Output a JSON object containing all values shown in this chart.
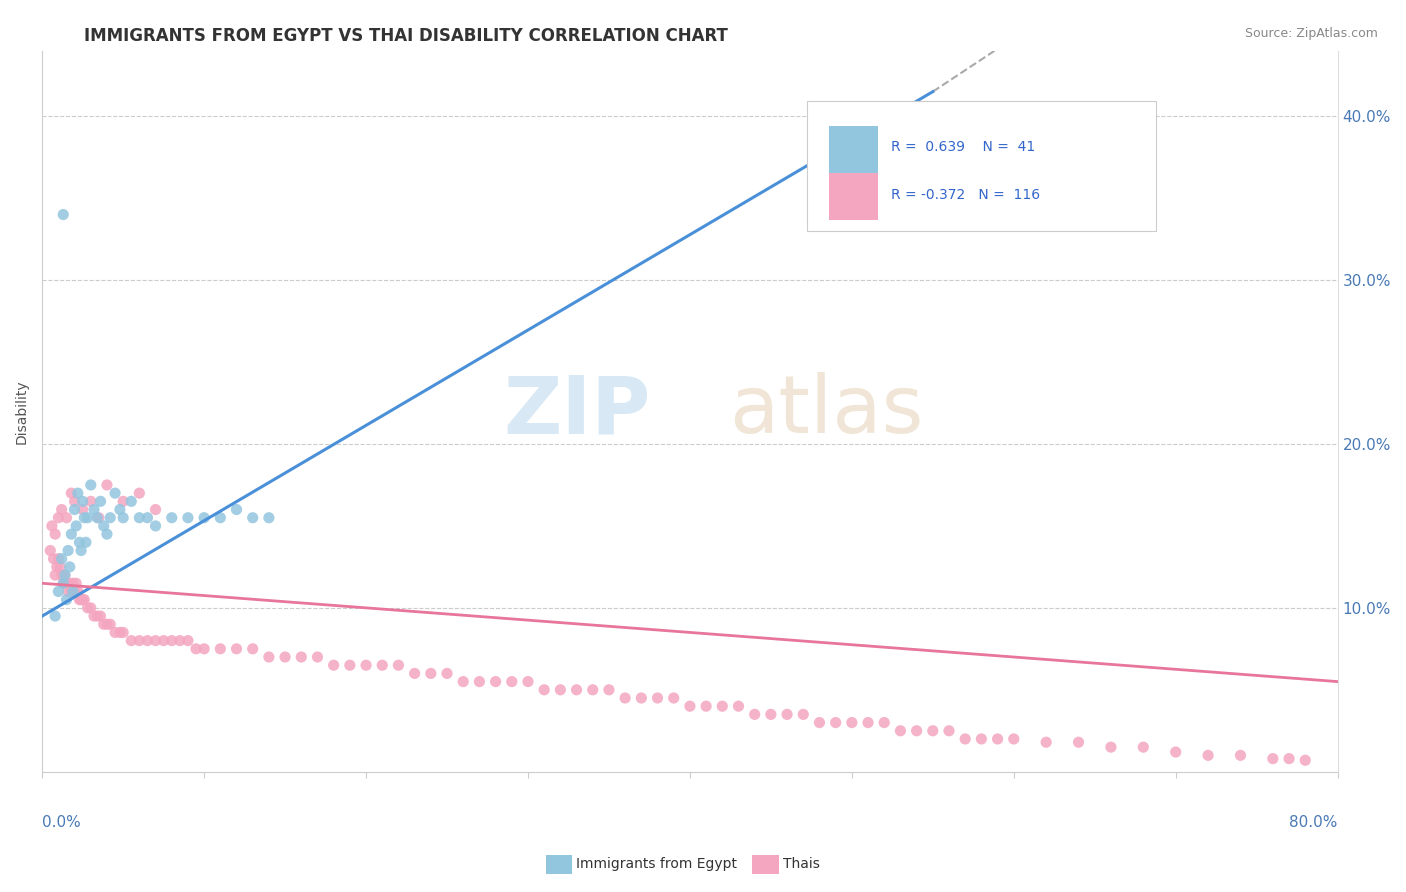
{
  "title": "IMMIGRANTS FROM EGYPT VS THAI DISABILITY CORRELATION CHART",
  "source": "Source: ZipAtlas.com",
  "ylabel": "Disability",
  "xmin": 0.0,
  "xmax": 0.8,
  "ymin": 0.0,
  "ymax": 0.44,
  "yticks": [
    0.1,
    0.2,
    0.3,
    0.4
  ],
  "ytick_labels": [
    "10.0%",
    "20.0%",
    "30.0%",
    "40.0%"
  ],
  "blue_color": "#92c5de",
  "pink_color": "#f4a6c0",
  "blue_line_color": "#4a90d9",
  "pink_line_color": "#e8759a",
  "blue_scatter_x": [
    0.008,
    0.01,
    0.012,
    0.013,
    0.014,
    0.015,
    0.016,
    0.017,
    0.018,
    0.019,
    0.02,
    0.021,
    0.022,
    0.023,
    0.024,
    0.025,
    0.026,
    0.027,
    0.028,
    0.03,
    0.032,
    0.034,
    0.036,
    0.038,
    0.04,
    0.042,
    0.045,
    0.048,
    0.05,
    0.055,
    0.06,
    0.065,
    0.07,
    0.08,
    0.09,
    0.1,
    0.11,
    0.12,
    0.13,
    0.14,
    0.013
  ],
  "blue_scatter_y": [
    0.095,
    0.11,
    0.13,
    0.115,
    0.12,
    0.105,
    0.135,
    0.125,
    0.145,
    0.11,
    0.16,
    0.15,
    0.17,
    0.14,
    0.135,
    0.165,
    0.155,
    0.14,
    0.155,
    0.175,
    0.16,
    0.155,
    0.165,
    0.15,
    0.145,
    0.155,
    0.17,
    0.16,
    0.155,
    0.165,
    0.155,
    0.155,
    0.15,
    0.155,
    0.155,
    0.155,
    0.155,
    0.16,
    0.155,
    0.155,
    0.34
  ],
  "pink_scatter_x": [
    0.005,
    0.007,
    0.008,
    0.009,
    0.01,
    0.011,
    0.012,
    0.013,
    0.014,
    0.015,
    0.016,
    0.017,
    0.018,
    0.019,
    0.02,
    0.021,
    0.022,
    0.023,
    0.024,
    0.025,
    0.026,
    0.028,
    0.03,
    0.032,
    0.034,
    0.036,
    0.038,
    0.04,
    0.042,
    0.045,
    0.048,
    0.05,
    0.055,
    0.06,
    0.065,
    0.07,
    0.075,
    0.08,
    0.085,
    0.09,
    0.095,
    0.1,
    0.11,
    0.12,
    0.13,
    0.14,
    0.15,
    0.16,
    0.17,
    0.18,
    0.19,
    0.2,
    0.21,
    0.22,
    0.23,
    0.24,
    0.25,
    0.26,
    0.27,
    0.28,
    0.29,
    0.3,
    0.31,
    0.32,
    0.33,
    0.34,
    0.35,
    0.36,
    0.37,
    0.38,
    0.39,
    0.4,
    0.41,
    0.42,
    0.43,
    0.44,
    0.45,
    0.46,
    0.47,
    0.48,
    0.49,
    0.5,
    0.51,
    0.52,
    0.53,
    0.54,
    0.55,
    0.56,
    0.57,
    0.58,
    0.59,
    0.6,
    0.62,
    0.64,
    0.66,
    0.68,
    0.7,
    0.72,
    0.74,
    0.76,
    0.77,
    0.78,
    0.006,
    0.008,
    0.01,
    0.012,
    0.015,
    0.018,
    0.02,
    0.025,
    0.03,
    0.035,
    0.04,
    0.05,
    0.06,
    0.07
  ],
  "pink_scatter_y": [
    0.135,
    0.13,
    0.12,
    0.125,
    0.13,
    0.125,
    0.12,
    0.115,
    0.12,
    0.115,
    0.11,
    0.115,
    0.11,
    0.115,
    0.11,
    0.115,
    0.11,
    0.105,
    0.105,
    0.105,
    0.105,
    0.1,
    0.1,
    0.095,
    0.095,
    0.095,
    0.09,
    0.09,
    0.09,
    0.085,
    0.085,
    0.085,
    0.08,
    0.08,
    0.08,
    0.08,
    0.08,
    0.08,
    0.08,
    0.08,
    0.075,
    0.075,
    0.075,
    0.075,
    0.075,
    0.07,
    0.07,
    0.07,
    0.07,
    0.065,
    0.065,
    0.065,
    0.065,
    0.065,
    0.06,
    0.06,
    0.06,
    0.055,
    0.055,
    0.055,
    0.055,
    0.055,
    0.05,
    0.05,
    0.05,
    0.05,
    0.05,
    0.045,
    0.045,
    0.045,
    0.045,
    0.04,
    0.04,
    0.04,
    0.04,
    0.035,
    0.035,
    0.035,
    0.035,
    0.03,
    0.03,
    0.03,
    0.03,
    0.03,
    0.025,
    0.025,
    0.025,
    0.025,
    0.02,
    0.02,
    0.02,
    0.02,
    0.018,
    0.018,
    0.015,
    0.015,
    0.012,
    0.01,
    0.01,
    0.008,
    0.008,
    0.007,
    0.15,
    0.145,
    0.155,
    0.16,
    0.155,
    0.17,
    0.165,
    0.16,
    0.165,
    0.155,
    0.175,
    0.165,
    0.17,
    0.16
  ],
  "blue_line_x_start": 0.0,
  "blue_line_x_solid_end": 0.55,
  "blue_line_x_dash_end": 0.68,
  "blue_line_y_start": 0.095,
  "blue_line_y_solid_end": 0.415,
  "blue_line_y_dash_end": 0.5,
  "pink_line_x_start": 0.0,
  "pink_line_x_end": 0.8,
  "pink_line_y_start": 0.115,
  "pink_line_y_end": 0.055
}
